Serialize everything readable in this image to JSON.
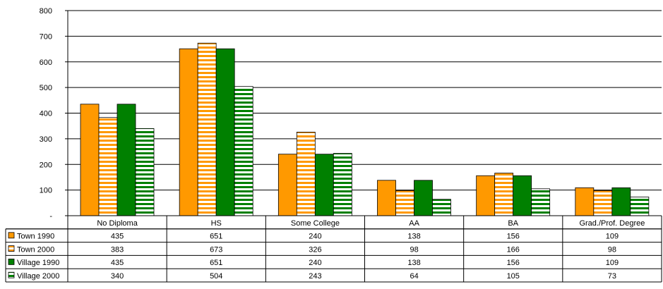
{
  "chart_data": {
    "type": "bar",
    "categories": [
      "No Diploma",
      "HS",
      "Some College",
      "AA",
      "BA",
      "Grad./Prof. Degree"
    ],
    "series": [
      {
        "name": "Town 1990",
        "values": [
          435,
          651,
          240,
          138,
          156,
          109
        ],
        "color": "#FF9900",
        "pattern": "solid"
      },
      {
        "name": "Town 2000",
        "values": [
          383,
          673,
          326,
          98,
          166,
          98
        ],
        "color": "#FF9900",
        "pattern": "horizontal-stripes"
      },
      {
        "name": "Village 1990",
        "values": [
          435,
          651,
          240,
          138,
          156,
          109
        ],
        "color": "#008000",
        "pattern": "solid"
      },
      {
        "name": "Village 2000",
        "values": [
          340,
          504,
          243,
          64,
          105,
          73
        ],
        "color": "#008000",
        "pattern": "horizontal-stripes"
      }
    ],
    "ylim": [
      0,
      800
    ],
    "yticks": [
      0,
      100,
      200,
      300,
      400,
      500,
      600,
      700,
      800
    ],
    "ytick_labels": [
      "-",
      "100",
      "200",
      "300",
      "400",
      "500",
      "600",
      "700",
      "800"
    ],
    "grid": true,
    "legend": "data-table-left",
    "title": "",
    "xlabel": "",
    "ylabel": ""
  }
}
